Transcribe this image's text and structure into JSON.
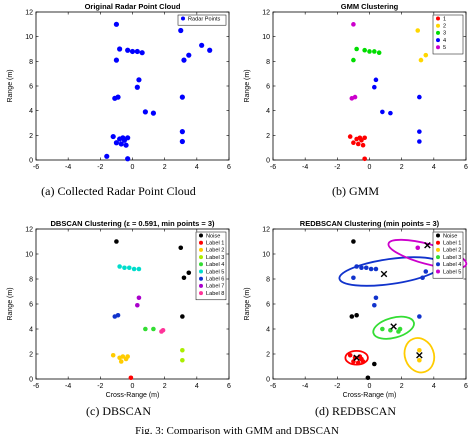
{
  "figure": {
    "captions": [
      "(a) Collected Radar Point Cloud",
      "(b) GMM",
      "(c) DBSCAN",
      "(d) REDBSCAN"
    ],
    "footer": "Fig. 3: Comparison with GMM and DBSCAN"
  },
  "chart_data": [
    {
      "type": "scatter",
      "title": "Original Radar Point Cloud",
      "xlabel": "",
      "ylabel": "Range (m)",
      "xlim": [
        -6,
        6
      ],
      "ylim": [
        0,
        12
      ],
      "xticks": [
        -6,
        -4,
        -2,
        0,
        2,
        4,
        6
      ],
      "yticks": [
        0,
        2,
        4,
        6,
        8,
        10,
        12
      ],
      "grid": false,
      "legend_position": "top-right",
      "series": [
        {
          "name": "Radar Points",
          "color": "#0000ff",
          "points": [
            [
              -1.2,
              1.9
            ],
            [
              -0.8,
              1.7
            ],
            [
              -0.6,
              1.8
            ],
            [
              -0.5,
              1.6
            ],
            [
              -0.3,
              1.8
            ],
            [
              -1.0,
              1.4
            ],
            [
              -0.7,
              1.3
            ],
            [
              -0.4,
              1.2
            ],
            [
              -0.3,
              0.1
            ],
            [
              -1.6,
              0.3
            ],
            [
              3.1,
              1.5
            ],
            [
              3.1,
              2.3
            ],
            [
              0.8,
              3.9
            ],
            [
              1.3,
              3.8
            ],
            [
              3.1,
              5.1
            ],
            [
              -0.9,
              5.1
            ],
            [
              -1.1,
              5.0
            ],
            [
              0.3,
              5.9
            ],
            [
              0.4,
              6.5
            ],
            [
              -1.0,
              8.1
            ],
            [
              -0.8,
              9.0
            ],
            [
              -0.3,
              8.9
            ],
            [
              0.0,
              8.8
            ],
            [
              0.3,
              8.8
            ],
            [
              0.6,
              8.7
            ],
            [
              -1.0,
              11.0
            ],
            [
              3.0,
              10.5
            ],
            [
              3.5,
              8.5
            ],
            [
              3.2,
              8.1
            ],
            [
              4.3,
              9.3
            ],
            [
              4.8,
              8.9
            ]
          ]
        }
      ]
    },
    {
      "type": "scatter",
      "title": "GMM Clustering",
      "xlabel": "",
      "ylabel": "Range (m)",
      "xlim": [
        -6,
        6
      ],
      "ylim": [
        0,
        12
      ],
      "xticks": [
        -6,
        -4,
        -2,
        0,
        2,
        4,
        6
      ],
      "yticks": [
        0,
        2,
        4,
        6,
        8,
        10,
        12
      ],
      "grid": false,
      "legend_position": "top-right",
      "series": [
        {
          "name": "1",
          "color": "#ff0000",
          "points": [
            [
              -1.2,
              1.9
            ],
            [
              -0.8,
              1.7
            ],
            [
              -0.6,
              1.8
            ],
            [
              -0.5,
              1.6
            ],
            [
              -0.3,
              1.8
            ],
            [
              -1.0,
              1.4
            ],
            [
              -0.7,
              1.3
            ],
            [
              -0.4,
              1.2
            ],
            [
              -0.3,
              0.1
            ]
          ]
        },
        {
          "name": "2",
          "color": "#ffd700",
          "points": [
            [
              3.0,
              10.5
            ],
            [
              3.5,
              8.5
            ],
            [
              3.2,
              8.1
            ],
            [
              4.3,
              9.3
            ],
            [
              4.8,
              8.9
            ]
          ]
        },
        {
          "name": "3",
          "color": "#00dd00",
          "points": [
            [
              -0.8,
              9.0
            ],
            [
              -0.3,
              8.9
            ],
            [
              0.0,
              8.8
            ],
            [
              0.3,
              8.8
            ],
            [
              0.6,
              8.7
            ],
            [
              -1.0,
              8.1
            ]
          ]
        },
        {
          "name": "4",
          "color": "#0000ff",
          "points": [
            [
              3.1,
              1.5
            ],
            [
              3.1,
              2.3
            ],
            [
              0.8,
              3.9
            ],
            [
              1.3,
              3.8
            ],
            [
              3.1,
              5.1
            ],
            [
              0.3,
              5.9
            ],
            [
              0.4,
              6.5
            ]
          ]
        },
        {
          "name": "5",
          "color": "#cc00cc",
          "points": [
            [
              -0.9,
              5.1
            ],
            [
              -1.1,
              5.0
            ],
            [
              -1.0,
              11.0
            ]
          ]
        }
      ]
    },
    {
      "type": "scatter",
      "title": "DBSCAN Clustering (ε = 0.591, min points = 3)",
      "xlabel": "Cross-Range (m)",
      "ylabel": "Range (m)",
      "xlim": [
        -6,
        6
      ],
      "ylim": [
        0,
        12
      ],
      "xticks": [
        -6,
        -4,
        -2,
        0,
        2,
        4,
        6
      ],
      "yticks": [
        0,
        2,
        4,
        6,
        8,
        10,
        12
      ],
      "grid": false,
      "legend_position": "top-right",
      "series": [
        {
          "name": "Noise",
          "color": "#000000",
          "points": [
            [
              -1.0,
              11.0
            ],
            [
              3.0,
              10.5
            ],
            [
              3.5,
              8.5
            ],
            [
              3.2,
              8.1
            ],
            [
              4.3,
              9.3
            ],
            [
              4.8,
              8.9
            ],
            [
              3.1,
              5.0
            ]
          ]
        },
        {
          "name": "Label 1",
          "color": "#ff0000",
          "points": [
            [
              -0.1,
              0.1
            ]
          ]
        },
        {
          "name": "Label 2",
          "color": "#ffcc00",
          "points": [
            [
              -1.2,
              1.9
            ],
            [
              -0.8,
              1.7
            ],
            [
              -0.6,
              1.8
            ],
            [
              -0.4,
              1.6
            ],
            [
              -0.3,
              1.8
            ],
            [
              -0.7,
              1.4
            ]
          ]
        },
        {
          "name": "Label 3",
          "color": "#aaee00",
          "points": [
            [
              3.1,
              1.5
            ],
            [
              3.1,
              2.3
            ]
          ]
        },
        {
          "name": "Label 4",
          "color": "#33dd33",
          "points": [
            [
              0.8,
              4.0
            ],
            [
              1.3,
              4.0
            ]
          ]
        },
        {
          "name": "Label 5",
          "color": "#00ddcc",
          "points": [
            [
              -0.8,
              9.0
            ],
            [
              -0.5,
              8.9
            ],
            [
              -0.2,
              8.9
            ],
            [
              0.1,
              8.8
            ],
            [
              0.4,
              8.8
            ]
          ]
        },
        {
          "name": "Label 6",
          "color": "#1133cc",
          "points": [
            [
              -0.9,
              5.1
            ],
            [
              -1.1,
              5.0
            ]
          ]
        },
        {
          "name": "Label 7",
          "color": "#aa00cc",
          "points": [
            [
              0.3,
              5.9
            ],
            [
              0.4,
              6.5
            ]
          ]
        },
        {
          "name": "Label 8",
          "color": "#ff3399",
          "points": [
            [
              1.9,
              3.9
            ],
            [
              1.8,
              3.8
            ]
          ]
        }
      ]
    },
    {
      "type": "scatter",
      "title": "REDBSCAN Clustering (min points = 3)",
      "xlabel": "Cross-Range (m)",
      "ylabel": "Range (m)",
      "xlim": [
        -6,
        6
      ],
      "ylim": [
        0,
        12
      ],
      "xticks": [
        -6,
        -4,
        -2,
        0,
        2,
        4,
        6
      ],
      "yticks": [
        0,
        2,
        4,
        6,
        8,
        10,
        12
      ],
      "grid": false,
      "legend_position": "top-right",
      "series": [
        {
          "name": "Noise",
          "color": "#000000",
          "points": [
            [
              -1.0,
              11.0
            ],
            [
              0.3,
              1.2
            ],
            [
              -0.1,
              0.1
            ],
            [
              -0.8,
              5.1
            ],
            [
              -1.1,
              5.0
            ],
            [
              4.8,
              8.9
            ]
          ]
        },
        {
          "name": "Label 1",
          "color": "#ff0000",
          "points": [
            [
              -1.2,
              1.9
            ],
            [
              -0.9,
              1.7
            ],
            [
              -0.6,
              1.8
            ],
            [
              -0.5,
              1.6
            ],
            [
              -1.0,
              1.4
            ],
            [
              -0.7,
              1.3
            ],
            [
              -0.4,
              1.4
            ]
          ]
        },
        {
          "name": "Label 2",
          "color": "#ffcc00",
          "points": [
            [
              3.1,
              1.5
            ],
            [
              3.1,
              2.3
            ]
          ]
        },
        {
          "name": "Label 3",
          "color": "#33dd33",
          "points": [
            [
              0.8,
              4.0
            ],
            [
              1.3,
              3.9
            ],
            [
              1.9,
              4.0
            ],
            [
              1.8,
              3.8
            ]
          ]
        },
        {
          "name": "Label 4",
          "color": "#1133cc",
          "points": [
            [
              -0.8,
              9.0
            ],
            [
              -0.5,
              8.9
            ],
            [
              -0.2,
              8.9
            ],
            [
              0.1,
              8.8
            ],
            [
              0.4,
              8.8
            ],
            [
              -1.0,
              8.1
            ],
            [
              0.3,
              5.9
            ],
            [
              0.4,
              6.5
            ],
            [
              3.1,
              5.0
            ],
            [
              3.5,
              8.6
            ],
            [
              3.3,
              8.1
            ]
          ]
        },
        {
          "name": "Label 5",
          "color": "#cc00cc",
          "points": [
            [
              3.0,
              10.5
            ],
            [
              4.3,
              9.3
            ]
          ]
        }
      ],
      "ellipses": [
        {
          "label": "Label 1",
          "color": "#ff0000",
          "cx": -0.8,
          "cy": 1.7,
          "rx": 0.7,
          "ry": 0.55,
          "angle": 0
        },
        {
          "label": "Label 2",
          "color": "#ffcc00",
          "cx": 3.1,
          "cy": 1.9,
          "rx": 0.9,
          "ry": 1.4,
          "angle": -20
        },
        {
          "label": "Label 3",
          "color": "#33dd33",
          "cx": 1.5,
          "cy": 4.1,
          "rx": 1.3,
          "ry": 0.8,
          "angle": -15
        },
        {
          "label": "Label 4",
          "color": "#1133cc",
          "cx": 1.3,
          "cy": 8.6,
          "rx": 3.2,
          "ry": 1.0,
          "angle": -8
        },
        {
          "label": "Label 5",
          "color": "#cc00cc",
          "cx": 3.6,
          "cy": 10.0,
          "rx": 2.5,
          "ry": 0.8,
          "angle": 15
        }
      ],
      "centroids": [
        [
          -0.8,
          1.7
        ],
        [
          3.1,
          1.9
        ],
        [
          1.5,
          4.2
        ],
        [
          0.9,
          8.4
        ],
        [
          3.6,
          10.7
        ]
      ]
    }
  ]
}
